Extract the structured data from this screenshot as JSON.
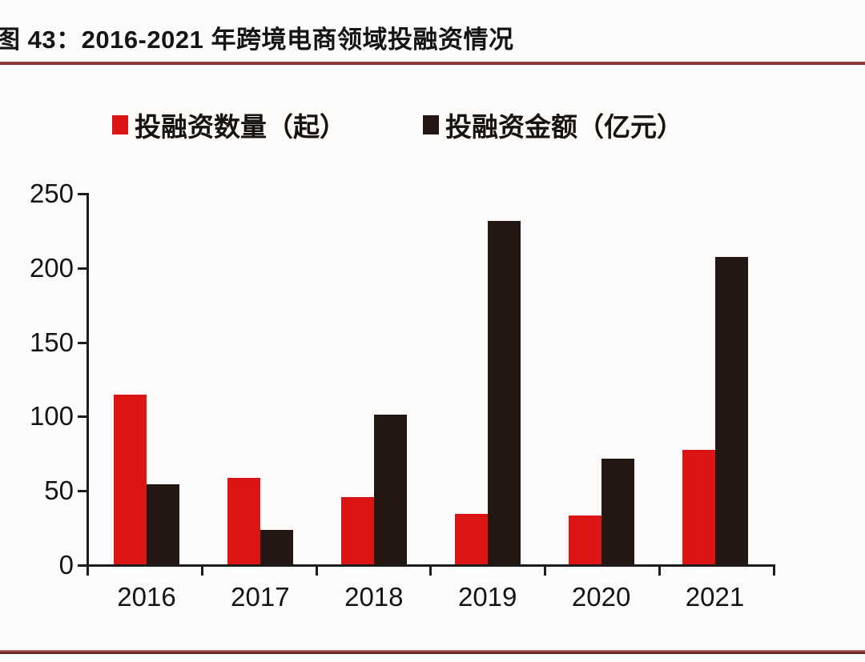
{
  "title": "图 43：2016-2021 年跨境电商领域投融资情况",
  "colors": {
    "series_count": "#dc1414",
    "series_amount": "#221712",
    "axis": "#1c1c1c",
    "rule": "#8c3232",
    "background": "#fcfbf9",
    "text": "#141414"
  },
  "legend": [
    {
      "label": "投融资数量（起）",
      "marker": "red-square-icon"
    },
    {
      "label": "投融资金额（亿元）",
      "marker": "black-square-icon"
    }
  ],
  "chart_data": {
    "type": "bar",
    "title": "图 43：2016-2021 年跨境电商领域投融资情况",
    "categories": [
      "2016",
      "2017",
      "2018",
      "2019",
      "2020",
      "2021"
    ],
    "series": [
      {
        "name": "投融资数量（起）",
        "color": "#dc1414",
        "values": [
          114,
          58,
          45,
          34,
          33,
          77
        ]
      },
      {
        "name": "投融资金额（亿元）",
        "color": "#221712",
        "values": [
          54,
          23,
          101,
          231,
          71,
          207
        ]
      }
    ],
    "xlabel": "",
    "ylabel": "",
    "ylim": [
      0,
      250
    ],
    "yticks": [
      0,
      50,
      100,
      150,
      200,
      250
    ],
    "grid": false,
    "legend_position": "top"
  }
}
